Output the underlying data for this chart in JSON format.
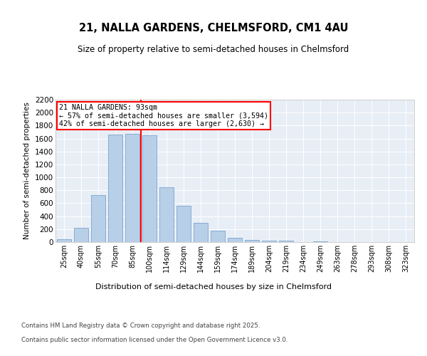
{
  "title1": "21, NALLA GARDENS, CHELMSFORD, CM1 4AU",
  "title2": "Size of property relative to semi-detached houses in Chelmsford",
  "xlabel": "Distribution of semi-detached houses by size in Chelmsford",
  "ylabel": "Number of semi-detached properties",
  "bar_labels": [
    "25sqm",
    "40sqm",
    "55sqm",
    "70sqm",
    "85sqm",
    "100sqm",
    "114sqm",
    "129sqm",
    "144sqm",
    "159sqm",
    "174sqm",
    "189sqm",
    "204sqm",
    "219sqm",
    "234sqm",
    "249sqm",
    "263sqm",
    "278sqm",
    "293sqm",
    "308sqm",
    "323sqm"
  ],
  "bar_values": [
    45,
    225,
    730,
    1665,
    1670,
    1650,
    845,
    560,
    295,
    180,
    70,
    35,
    25,
    20,
    0,
    15,
    0,
    0,
    0,
    0,
    0
  ],
  "bar_color": "#b8cfe8",
  "bar_edge_color": "#6899c8",
  "vline_color": "red",
  "annotation_title": "21 NALLA GARDENS: 93sqm",
  "annotation_line1": "← 57% of semi-detached houses are smaller (3,594)",
  "annotation_line2": "42% of semi-detached houses are larger (2,630) →",
  "ylim": [
    0,
    2200
  ],
  "yticks": [
    0,
    200,
    400,
    600,
    800,
    1000,
    1200,
    1400,
    1600,
    1800,
    2000,
    2200
  ],
  "footer1": "Contains HM Land Registry data © Crown copyright and database right 2025.",
  "footer2": "Contains public sector information licensed under the Open Government Licence v3.0.",
  "bg_color": "#ffffff",
  "plot_bg_color": "#e8eef6"
}
